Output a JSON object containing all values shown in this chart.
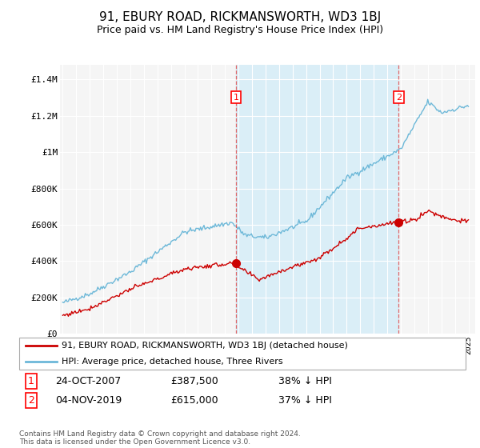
{
  "title": "91, EBURY ROAD, RICKMANSWORTH, WD3 1BJ",
  "subtitle": "Price paid vs. HM Land Registry's House Price Index (HPI)",
  "title_fontsize": 11,
  "subtitle_fontsize": 9,
  "ylabel_ticks": [
    "£0",
    "£200K",
    "£400K",
    "£600K",
    "£800K",
    "£1M",
    "£1.2M",
    "£1.4M"
  ],
  "ytick_vals": [
    0,
    200000,
    400000,
    600000,
    800000,
    1000000,
    1200000,
    1400000
  ],
  "ylim": [
    0,
    1480000
  ],
  "xlim_start": 1994.8,
  "xlim_end": 2025.5,
  "hpi_color": "#6db8d8",
  "hpi_fill_color": "#daeef7",
  "price_color": "#cc0000",
  "marker1_x": 2007.82,
  "marker1_y": 387500,
  "marker2_x": 2019.84,
  "marker2_y": 615000,
  "legend_label1": "91, EBURY ROAD, RICKMANSWORTH, WD3 1BJ (detached house)",
  "legend_label2": "HPI: Average price, detached house, Three Rivers",
  "sale1_date": "24-OCT-2007",
  "sale1_price": "£387,500",
  "sale1_hpi": "38% ↓ HPI",
  "sale2_date": "04-NOV-2019",
  "sale2_price": "£615,000",
  "sale2_hpi": "37% ↓ HPI",
  "footnote": "Contains HM Land Registry data © Crown copyright and database right 2024.\nThis data is licensed under the Open Government Licence v3.0.",
  "background_color": "#ffffff",
  "plot_bg_color": "#f5f5f5"
}
